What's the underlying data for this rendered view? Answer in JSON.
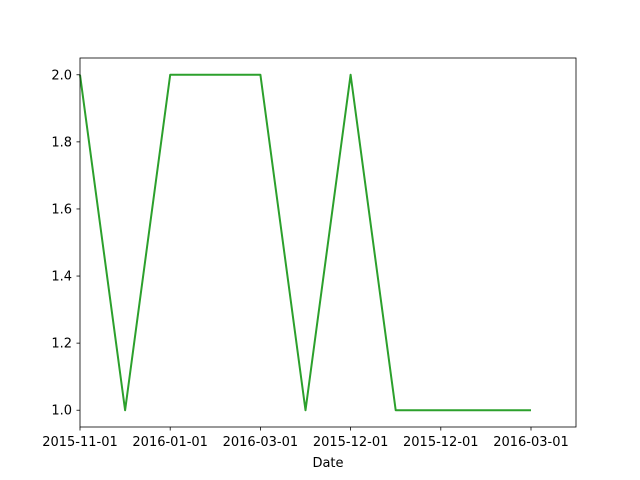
{
  "chart_data": {
    "type": "line",
    "xlabel": "Date",
    "ylabel": "",
    "title": "",
    "grid": false,
    "legend": "none",
    "x_tick_labels": [
      "2015-11-01",
      "2016-01-01",
      "2016-03-01",
      "2015-12-01",
      "2015-12-01",
      "2016-03-01"
    ],
    "y_ticks": [
      1.0,
      1.2,
      1.4,
      1.6,
      1.8,
      2.0
    ],
    "y_tick_labels": [
      "1.0",
      "1.2",
      "1.4",
      "1.6",
      "1.8",
      "2.0"
    ],
    "ylim": [
      0.95,
      2.05
    ],
    "series": [
      {
        "color": "#2ca02c",
        "values": [
          2,
          1,
          2,
          2,
          2,
          1,
          2,
          1,
          1,
          1,
          1
        ]
      }
    ]
  }
}
